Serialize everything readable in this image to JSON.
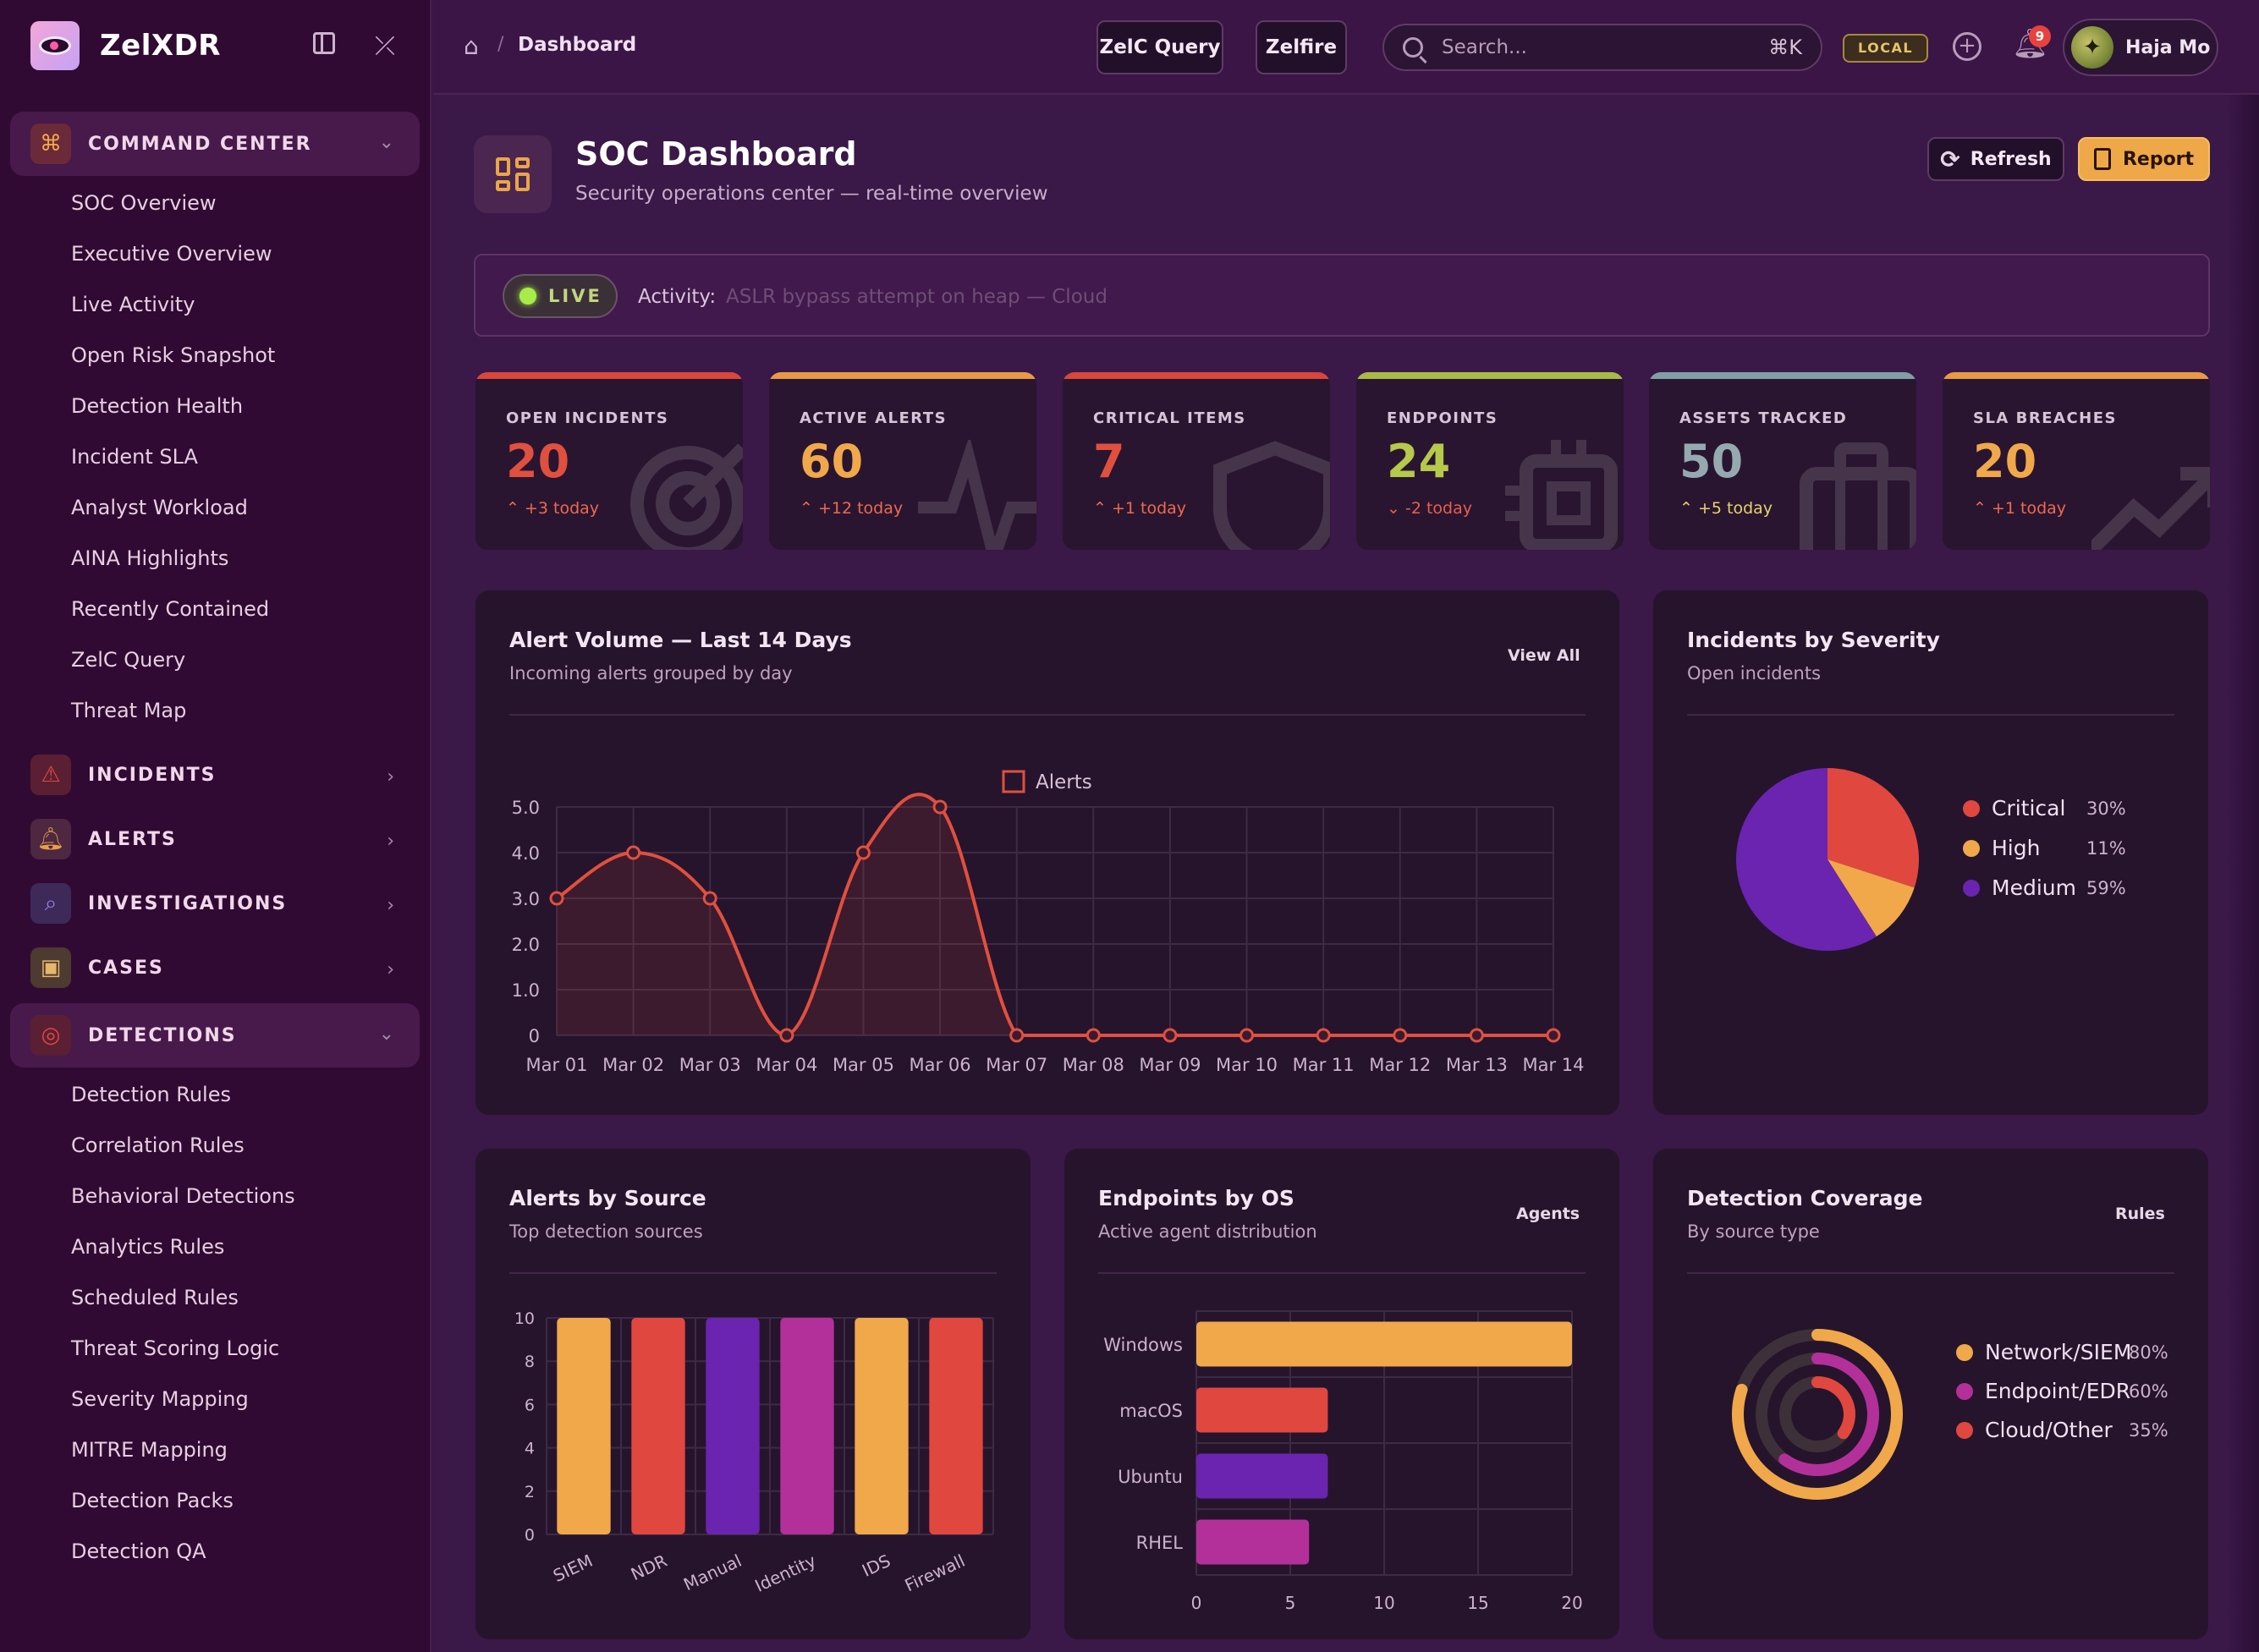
{
  "app": {
    "name": "ZelXDR"
  },
  "sidebar": {
    "sections": [
      {
        "label": "COMMAND CENTER",
        "icon": "command-icon",
        "open": true,
        "items": [
          "SOC Overview",
          "Executive Overview",
          "Live Activity",
          "Open Risk Snapshot",
          "Detection Health",
          "Incident SLA",
          "Analyst Workload",
          "AINA Highlights",
          "Recently Contained",
          "ZelC Query",
          "Threat Map"
        ]
      },
      {
        "label": "INCIDENTS",
        "icon": "warning-icon",
        "open": false
      },
      {
        "label": "ALERTS",
        "icon": "bell-icon",
        "open": false
      },
      {
        "label": "INVESTIGATIONS",
        "icon": "magnifier-icon",
        "open": false
      },
      {
        "label": "CASES",
        "icon": "briefcase-icon",
        "open": false
      },
      {
        "label": "DETECTIONS",
        "icon": "target-icon",
        "open": true,
        "items": [
          "Detection Rules",
          "Correlation Rules",
          "Behavioral Detections",
          "Analytics Rules",
          "Scheduled Rules",
          "Threat Scoring Logic",
          "Severity Mapping",
          "MITRE Mapping",
          "Detection Packs",
          "Detection QA"
        ]
      }
    ]
  },
  "topbar": {
    "breadcrumb_current": "Dashboard",
    "zelc_query": "ZelC Query",
    "zelfire": "Zelfire",
    "search_placeholder": "Search...",
    "search_shortcut": "⌘K",
    "env_badge": "LOCAL",
    "notification_count": "9",
    "user_name": "Haja Mo"
  },
  "header": {
    "title": "SOC Dashboard",
    "subtitle": "Security operations center — real-time overview",
    "refresh_label": "Refresh",
    "report_label": "Report"
  },
  "live": {
    "badge": "LIVE",
    "activity_label": "Activity:",
    "activity_text": "ASLR bypass attempt on heap — Cloud"
  },
  "kpis": [
    {
      "label": "OPEN INCIDENTS",
      "value": "20",
      "delta": "+3 today",
      "dir": "up",
      "color": "#e0503e",
      "band": "#d9463a",
      "icon": "target"
    },
    {
      "label": "ACTIVE ALERTS",
      "value": "60",
      "delta": "+12 today",
      "dir": "up",
      "color": "#f0a84a",
      "band": "#e89a44",
      "icon": "pulse"
    },
    {
      "label": "CRITICAL ITEMS",
      "value": "7",
      "delta": "+1 today",
      "dir": "up",
      "color": "#e0503e",
      "band": "#d9463a",
      "icon": "shield"
    },
    {
      "label": "ENDPOINTS",
      "value": "24",
      "delta": "-2 today",
      "dir": "down",
      "color": "#b5c94a",
      "band": "#a8bb44",
      "icon": "chip"
    },
    {
      "label": "ASSETS TRACKED",
      "value": "50",
      "delta": "+5 today",
      "dir": "up",
      "color": "#94aab0",
      "band": "#7fa0a4",
      "icon": "case"
    },
    {
      "label": "SLA BREACHES",
      "value": "20",
      "delta": "+1 today",
      "dir": "up",
      "color": "#f0a84a",
      "band": "#e89a44",
      "icon": "trend"
    }
  ],
  "colors": {
    "up_delta": "#ec6a4e",
    "down_delta": "#e85f4a",
    "assets_delta": "#e6d26a"
  },
  "alert_volume": {
    "title": "Alert Volume — Last 14 Days",
    "subtitle": "Incoming alerts grouped by day",
    "action": "View All"
  },
  "severity_panel": {
    "title": "Incidents by Severity",
    "subtitle": "Open incidents"
  },
  "source_panel": {
    "title": "Alerts by Source",
    "subtitle": "Top detection sources"
  },
  "os_panel": {
    "title": "Endpoints by OS",
    "subtitle": "Active agent distribution",
    "action": "Agents"
  },
  "coverage_panel": {
    "title": "Detection Coverage",
    "subtitle": "By source type",
    "action": "Rules"
  },
  "chart_data": [
    {
      "id": "alert-volume",
      "type": "line",
      "legend": "Alerts",
      "categories": [
        "Mar 01",
        "Mar 02",
        "Mar 03",
        "Mar 04",
        "Mar 05",
        "Mar 06",
        "Mar 07",
        "Mar 08",
        "Mar 09",
        "Mar 10",
        "Mar 11",
        "Mar 12",
        "Mar 13",
        "Mar 14"
      ],
      "values": [
        3,
        4,
        3,
        0,
        4,
        5,
        0,
        0,
        0,
        0,
        0,
        0,
        0,
        0
      ],
      "ylim": [
        0,
        5
      ],
      "yticks": [
        "0",
        "1.0",
        "2.0",
        "3.0",
        "4.0",
        "5.0"
      ],
      "color": "#e0503e"
    },
    {
      "id": "severity",
      "type": "pie",
      "labels": [
        "Critical",
        "High",
        "Medium"
      ],
      "values": [
        30,
        11,
        59
      ],
      "pct_labels": [
        "30%",
        "11%",
        "59%"
      ],
      "colors": [
        "#e0473f",
        "#f0a84a",
        "#6a24b0"
      ]
    },
    {
      "id": "alerts-by-source",
      "type": "bar",
      "categories": [
        "SIEM",
        "NDR",
        "Manual",
        "Identity",
        "IDS",
        "Firewall"
      ],
      "values": [
        10,
        10,
        10,
        10,
        10,
        10
      ],
      "ylim": [
        0,
        10
      ],
      "yticks": [
        "0",
        "2",
        "4",
        "6",
        "8",
        "10"
      ],
      "colors": [
        "#f0a84a",
        "#e0473f",
        "#6a24b0",
        "#b3309a",
        "#f0a84a",
        "#e0473f"
      ]
    },
    {
      "id": "endpoints-by-os",
      "type": "bar",
      "orientation": "horizontal",
      "categories": [
        "Windows",
        "macOS",
        "Ubuntu",
        "RHEL"
      ],
      "values": [
        20,
        7,
        7,
        6
      ],
      "xlim": [
        0,
        20
      ],
      "xticks": [
        "0",
        "5",
        "10",
        "15",
        "20"
      ],
      "colors": [
        "#f0a84a",
        "#e0473f",
        "#6a24b0",
        "#b3309a"
      ]
    },
    {
      "id": "detection-coverage",
      "type": "radial-bar",
      "labels": [
        "Network/SIEM",
        "Endpoint/EDR",
        "Cloud/Other"
      ],
      "values": [
        80,
        60,
        35
      ],
      "pct_labels": [
        "80%",
        "60%",
        "35%"
      ],
      "colors": [
        "#f0a84a",
        "#b3309a",
        "#e0473f"
      ]
    }
  ]
}
